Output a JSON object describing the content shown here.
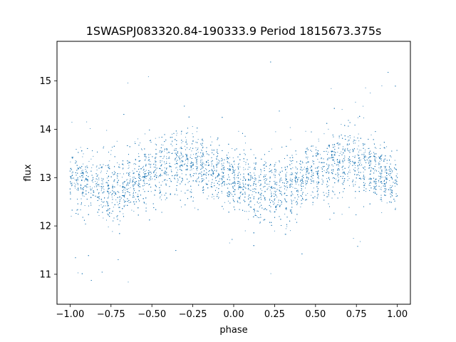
{
  "chart_data": {
    "type": "scatter",
    "title": "1SWASPJ083320.84-190333.9 Period 1815673.375s",
    "xlabel": "phase",
    "ylabel": "flux",
    "xlim": [
      -1.08,
      1.08
    ],
    "ylim": [
      10.38,
      15.82
    ],
    "xticks": [
      -1.0,
      -0.75,
      -0.5,
      -0.25,
      0.0,
      0.25,
      0.5,
      0.75,
      1.0
    ],
    "xtick_labels": [
      "−1.00",
      "−0.75",
      "−0.50",
      "−0.25",
      "0.00",
      "0.25",
      "0.50",
      "0.75",
      "1.00"
    ],
    "yticks": [
      11,
      12,
      13,
      14,
      15
    ],
    "ytick_labels": [
      "11",
      "12",
      "13",
      "14",
      "15"
    ],
    "grid": false,
    "marker_color": "#1f77b4",
    "series": [
      {
        "description": "dense phase-folded light curve, point cloud summarized by per-phase band",
        "phase_range": [
          -1.0,
          1.0
        ],
        "band_profile": [
          {
            "phase": -1.0,
            "center": 12.95,
            "spread": 0.55
          },
          {
            "phase": -0.9,
            "center": 12.85,
            "spread": 0.6
          },
          {
            "phase": -0.8,
            "center": 12.75,
            "spread": 0.65
          },
          {
            "phase": -0.7,
            "center": 12.7,
            "spread": 0.7
          },
          {
            "phase": -0.6,
            "center": 12.95,
            "spread": 0.55
          },
          {
            "phase": -0.5,
            "center": 13.15,
            "spread": 0.55
          },
          {
            "phase": -0.4,
            "center": 13.25,
            "spread": 0.6
          },
          {
            "phase": -0.3,
            "center": 13.3,
            "spread": 0.65
          },
          {
            "phase": -0.2,
            "center": 13.25,
            "spread": 0.55
          },
          {
            "phase": -0.1,
            "center": 13.1,
            "spread": 0.5
          },
          {
            "phase": 0.0,
            "center": 12.95,
            "spread": 0.55
          },
          {
            "phase": 0.1,
            "center": 12.85,
            "spread": 0.6
          },
          {
            "phase": 0.2,
            "center": 12.75,
            "spread": 0.65
          },
          {
            "phase": 0.3,
            "center": 12.7,
            "spread": 0.7
          },
          {
            "phase": 0.4,
            "center": 12.95,
            "spread": 0.55
          },
          {
            "phase": 0.5,
            "center": 13.15,
            "spread": 0.55
          },
          {
            "phase": 0.6,
            "center": 13.25,
            "spread": 0.6
          },
          {
            "phase": 0.7,
            "center": 13.3,
            "spread": 0.65
          },
          {
            "phase": 0.8,
            "center": 13.25,
            "spread": 0.55
          },
          {
            "phase": 0.9,
            "center": 13.1,
            "spread": 0.5
          },
          {
            "phase": 1.0,
            "center": 12.95,
            "spread": 0.55
          }
        ]
      }
    ]
  }
}
